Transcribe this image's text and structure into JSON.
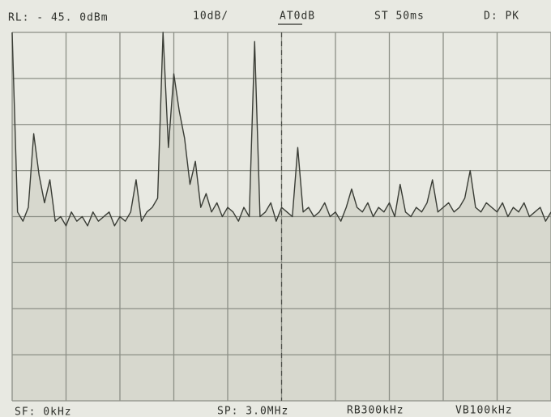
{
  "chart_data": {
    "type": "line",
    "header": [
      "RL: - 45. 0dBm",
      "10dB/",
      "AT0dB",
      "ST 50ms",
      "D: PK"
    ],
    "footer": [
      "SF: 0kHz",
      "SP: 3.0MHz",
      "RB300kHz",
      "VB100kHz"
    ],
    "x": [
      0,
      0.03,
      0.06,
      0.09,
      0.12,
      0.15,
      0.18,
      0.21,
      0.24,
      0.27,
      0.3,
      0.33,
      0.36,
      0.39,
      0.42,
      0.45,
      0.48,
      0.51,
      0.54,
      0.57,
      0.6,
      0.63,
      0.66,
      0.69,
      0.72,
      0.75,
      0.78,
      0.81,
      0.84,
      0.87,
      0.9,
      0.93,
      0.96,
      0.99,
      1.02,
      1.05,
      1.08,
      1.11,
      1.14,
      1.17,
      1.2,
      1.23,
      1.26,
      1.29,
      1.32,
      1.35,
      1.38,
      1.41,
      1.44,
      1.47,
      1.5,
      1.53,
      1.56,
      1.59,
      1.62,
      1.65,
      1.68,
      1.71,
      1.74,
      1.77,
      1.8,
      1.83,
      1.86,
      1.89,
      1.92,
      1.95,
      1.98,
      2.01,
      2.04,
      2.07,
      2.1,
      2.13,
      2.16,
      2.19,
      2.22,
      2.25,
      2.28,
      2.31,
      2.34,
      2.37,
      2.4,
      2.43,
      2.46,
      2.49,
      2.52,
      2.55,
      2.58,
      2.61,
      2.64,
      2.67,
      2.7,
      2.73,
      2.76,
      2.79,
      2.82,
      2.85,
      2.88,
      2.91,
      2.94,
      2.97,
      3
    ],
    "series": [
      {
        "color": "#3a3d36",
        "values": [
          -45,
          -84,
          -86,
          -83,
          -67,
          -76,
          -82,
          -77,
          -86,
          -85,
          -87,
          -84,
          -86,
          -85,
          -87,
          -84,
          -86,
          -85,
          -84,
          -87,
          -85,
          -86,
          -84,
          -77,
          -86,
          -84,
          -83,
          -81,
          -45,
          -70,
          -54,
          -62,
          -68,
          -78,
          -73,
          -83,
          -80,
          -84,
          -82,
          -85,
          -83,
          -84,
          -86,
          -83,
          -85,
          -47,
          -85,
          -84,
          -82,
          -86,
          -83,
          -84,
          -85,
          -70,
          -84,
          -83,
          -85,
          -84,
          -82,
          -85,
          -84,
          -86,
          -83,
          -79,
          -83,
          -84,
          -82,
          -85,
          -83,
          -84,
          -82,
          -85,
          -78,
          -84,
          -85,
          -83,
          -84,
          -82,
          -77,
          -84,
          -83,
          -82,
          -84,
          -83,
          -81,
          -75,
          -83,
          -84,
          -82,
          -83,
          -84,
          -82,
          -85,
          -83,
          -84,
          -82,
          -85,
          -84,
          -83,
          -86,
          -84
        ]
      }
    ],
    "xlim": [
      0,
      3
    ],
    "xticks": [
      0,
      0.3,
      0.6,
      0.9,
      1.2,
      1.5,
      1.8,
      2.1,
      2.4,
      2.7,
      3
    ],
    "ylim": [
      -125,
      -45
    ],
    "yticks": [
      -125,
      -115,
      -105,
      -95,
      -85,
      -75,
      -65,
      -55,
      -45
    ],
    "grid": true
  }
}
